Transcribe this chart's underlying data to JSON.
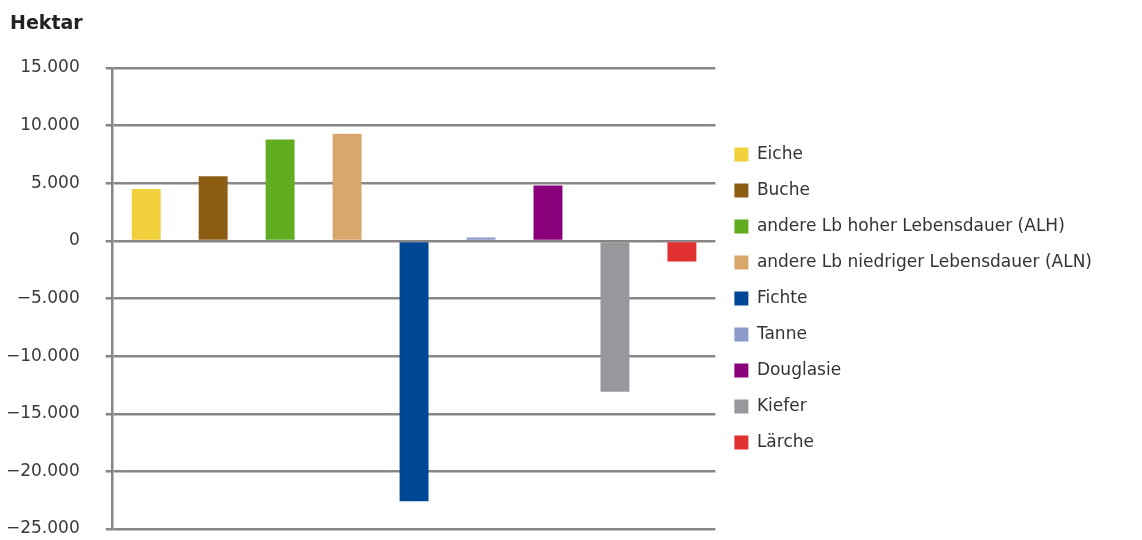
{
  "chart_data": {
    "type": "bar",
    "ylabel": "Hektar",
    "categories": [
      null,
      null,
      null,
      null,
      null,
      null,
      null,
      null,
      null
    ],
    "series": [
      {
        "name": "Eiche",
        "color": "#f2d03b",
        "values": [
          4500,
          null,
          null,
          null,
          null,
          null,
          null,
          null,
          null
        ]
      },
      {
        "name": "Buche",
        "color": "#8b5e14",
        "values": [
          null,
          5600,
          null,
          null,
          null,
          null,
          null,
          null,
          null
        ]
      },
      {
        "name": "andere Lb hoher Lebensdauer (ALH)",
        "color": "#62ac22",
        "values": [
          null,
          null,
          8800,
          null,
          null,
          null,
          null,
          null,
          null
        ]
      },
      {
        "name": "andere Lb niedriger Lebensdauer (ALN)",
        "color": "#d8a76b",
        "values": [
          null,
          null,
          null,
          9300,
          null,
          null,
          null,
          null,
          null
        ]
      },
      {
        "name": "Fichte",
        "color": "#004896",
        "values": [
          null,
          null,
          null,
          null,
          -22600,
          null,
          null,
          null,
          null
        ]
      },
      {
        "name": "Tanne",
        "color": "#8c9bca",
        "values": [
          null,
          null,
          null,
          null,
          null,
          300,
          null,
          null,
          null
        ]
      },
      {
        "name": "Douglasie",
        "color": "#8a007a",
        "values": [
          null,
          null,
          null,
          null,
          null,
          null,
          4800,
          null,
          null
        ]
      },
      {
        "name": "Kiefer",
        "color": "#98979c",
        "values": [
          null,
          null,
          null,
          null,
          null,
          null,
          null,
          -13100,
          null
        ]
      },
      {
        "name": "Lärche",
        "color": "#e03030",
        "values": [
          null,
          null,
          null,
          null,
          null,
          null,
          null,
          null,
          -1800
        ]
      }
    ],
    "ylim": [
      -25000,
      15000
    ],
    "yticks": [
      {
        "value": -25000,
        "label": "−25.000"
      },
      {
        "value": -20000,
        "label": "−20.000"
      },
      {
        "value": -15000,
        "label": "−15.000"
      },
      {
        "value": -10000,
        "label": "−10.000"
      },
      {
        "value": -5000,
        "label": "−5.000"
      },
      0,
      {
        "value": 5000,
        "label": "5.000"
      },
      {
        "value": 10000,
        "label": "10.000"
      },
      {
        "value": 15000,
        "label": "15.000"
      }
    ],
    "grid": "y",
    "legend": "right",
    "tick_labels": "y"
  }
}
